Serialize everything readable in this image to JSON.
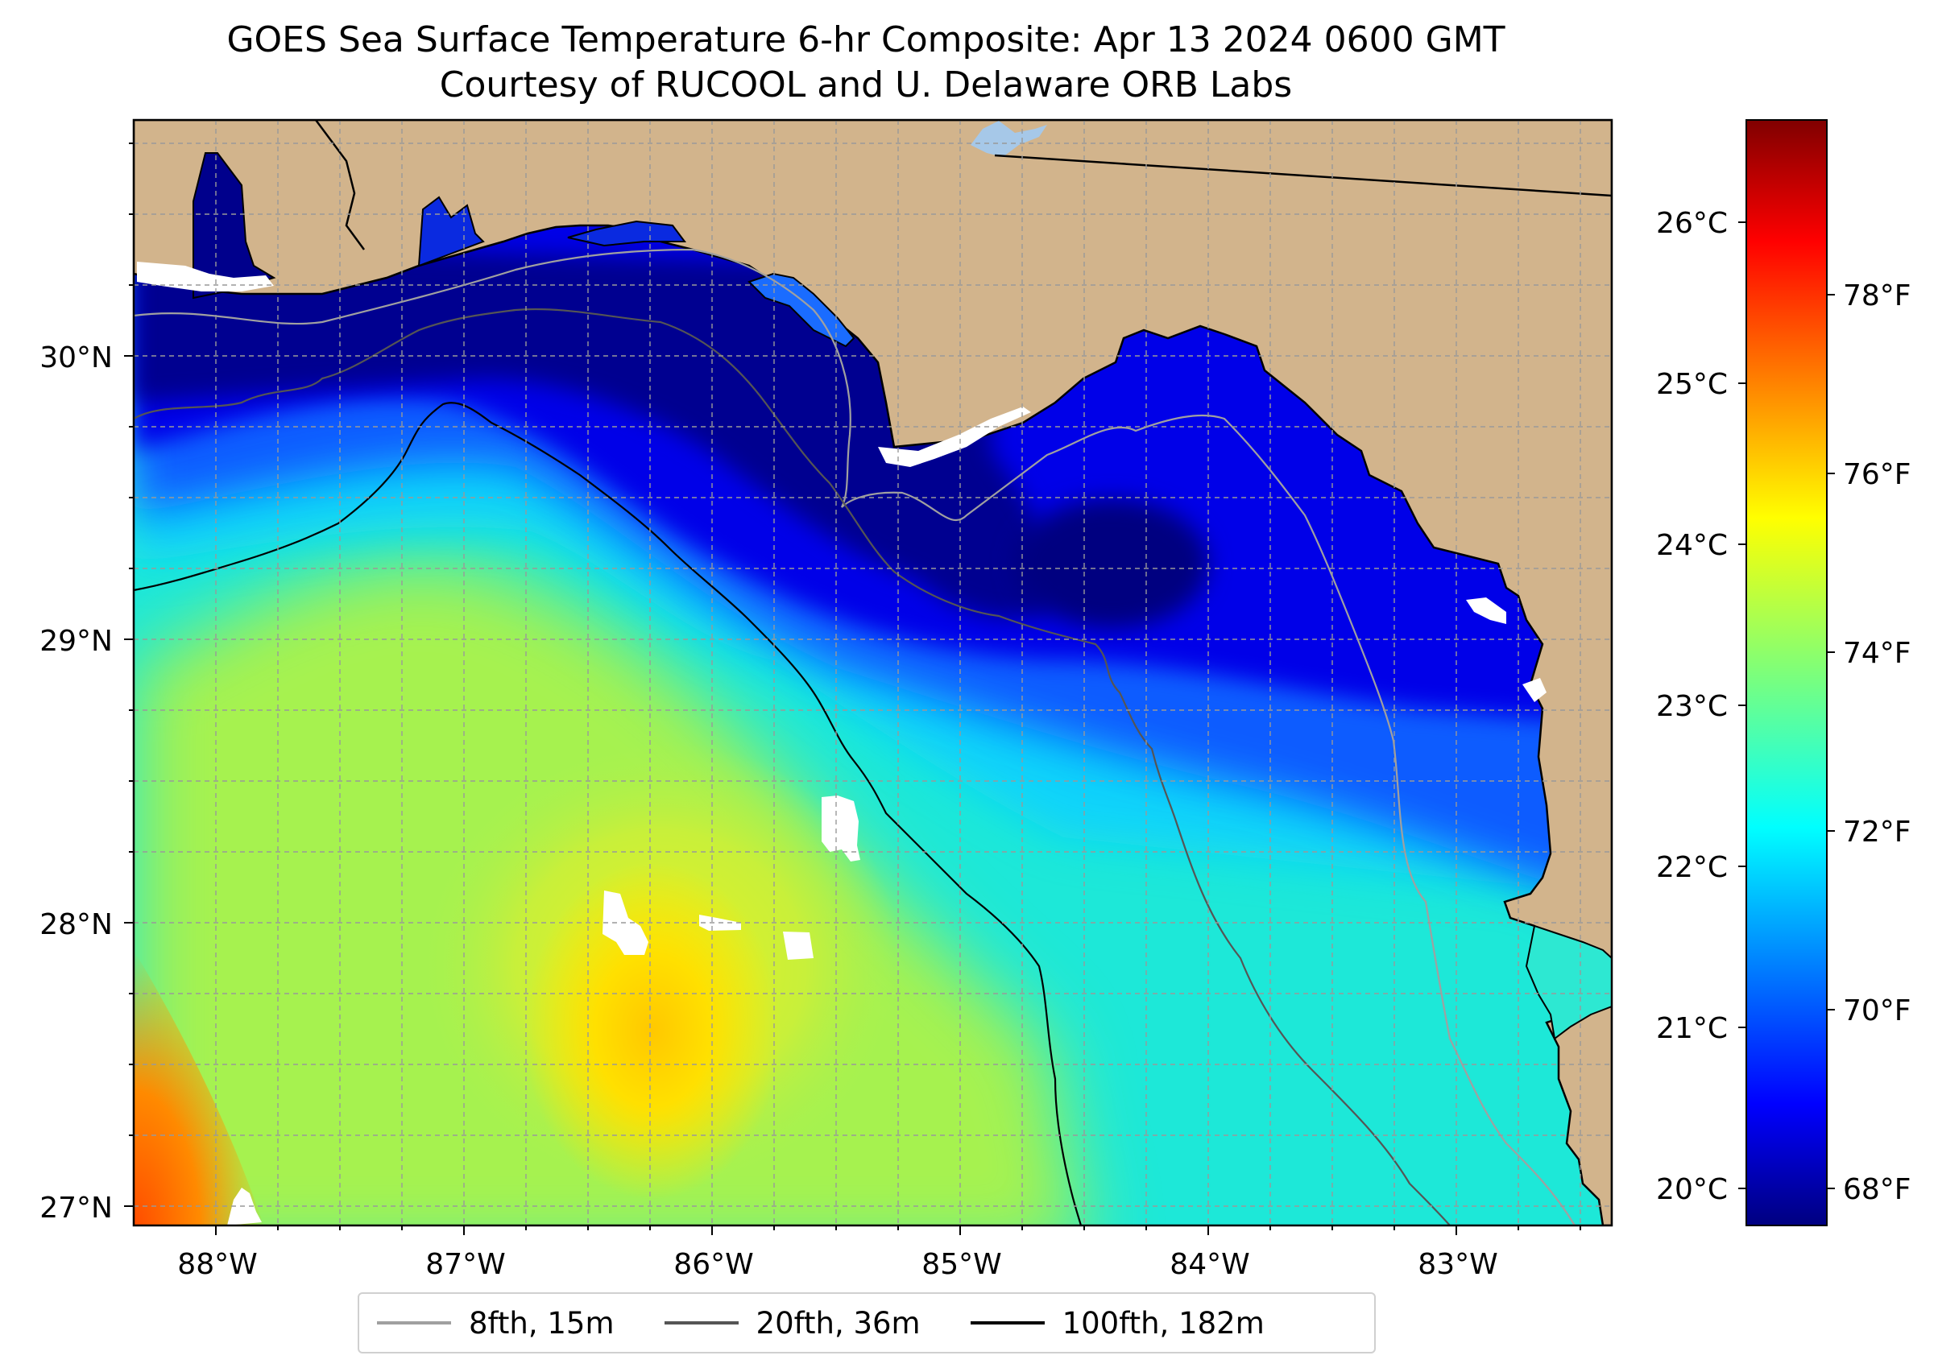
{
  "title": "GOES Sea Surface Temperature 6-hr Composite: Apr 13 2024 0600 GMT",
  "subtitle": "Courtesy of RUCOOL and U. Delaware ORB Labs",
  "map": {
    "lon_range": [
      -88.33,
      -82.38
    ],
    "lat_range": [
      26.93,
      30.85
    ],
    "lon_ticks": [
      "88°W",
      "87°W",
      "86°W",
      "85°W",
      "84°W",
      "83°W"
    ],
    "lat_ticks": [
      "27°N",
      "28°N",
      "29°N",
      "30°N"
    ],
    "grid": true,
    "land_color": "#d2b48c",
    "cloud_color": "#ffffff"
  },
  "colorbar": {
    "celsius_ticks": [
      "20°C",
      "21°C",
      "22°C",
      "23°C",
      "24°C",
      "25°C",
      "26°C"
    ],
    "fahrenheit_ticks": [
      "68°F",
      "70°F",
      "72°F",
      "74°F",
      "76°F",
      "78°F"
    ],
    "colormap": "jet",
    "range_f": [
      67.6,
      80.0
    ]
  },
  "legend": {
    "items": [
      {
        "label": "8fth, 15m",
        "color": "#a0a0a0"
      },
      {
        "label": "20fth, 36m",
        "color": "#555555"
      },
      {
        "label": "100fth, 182m",
        "color": "#000000"
      }
    ]
  }
}
